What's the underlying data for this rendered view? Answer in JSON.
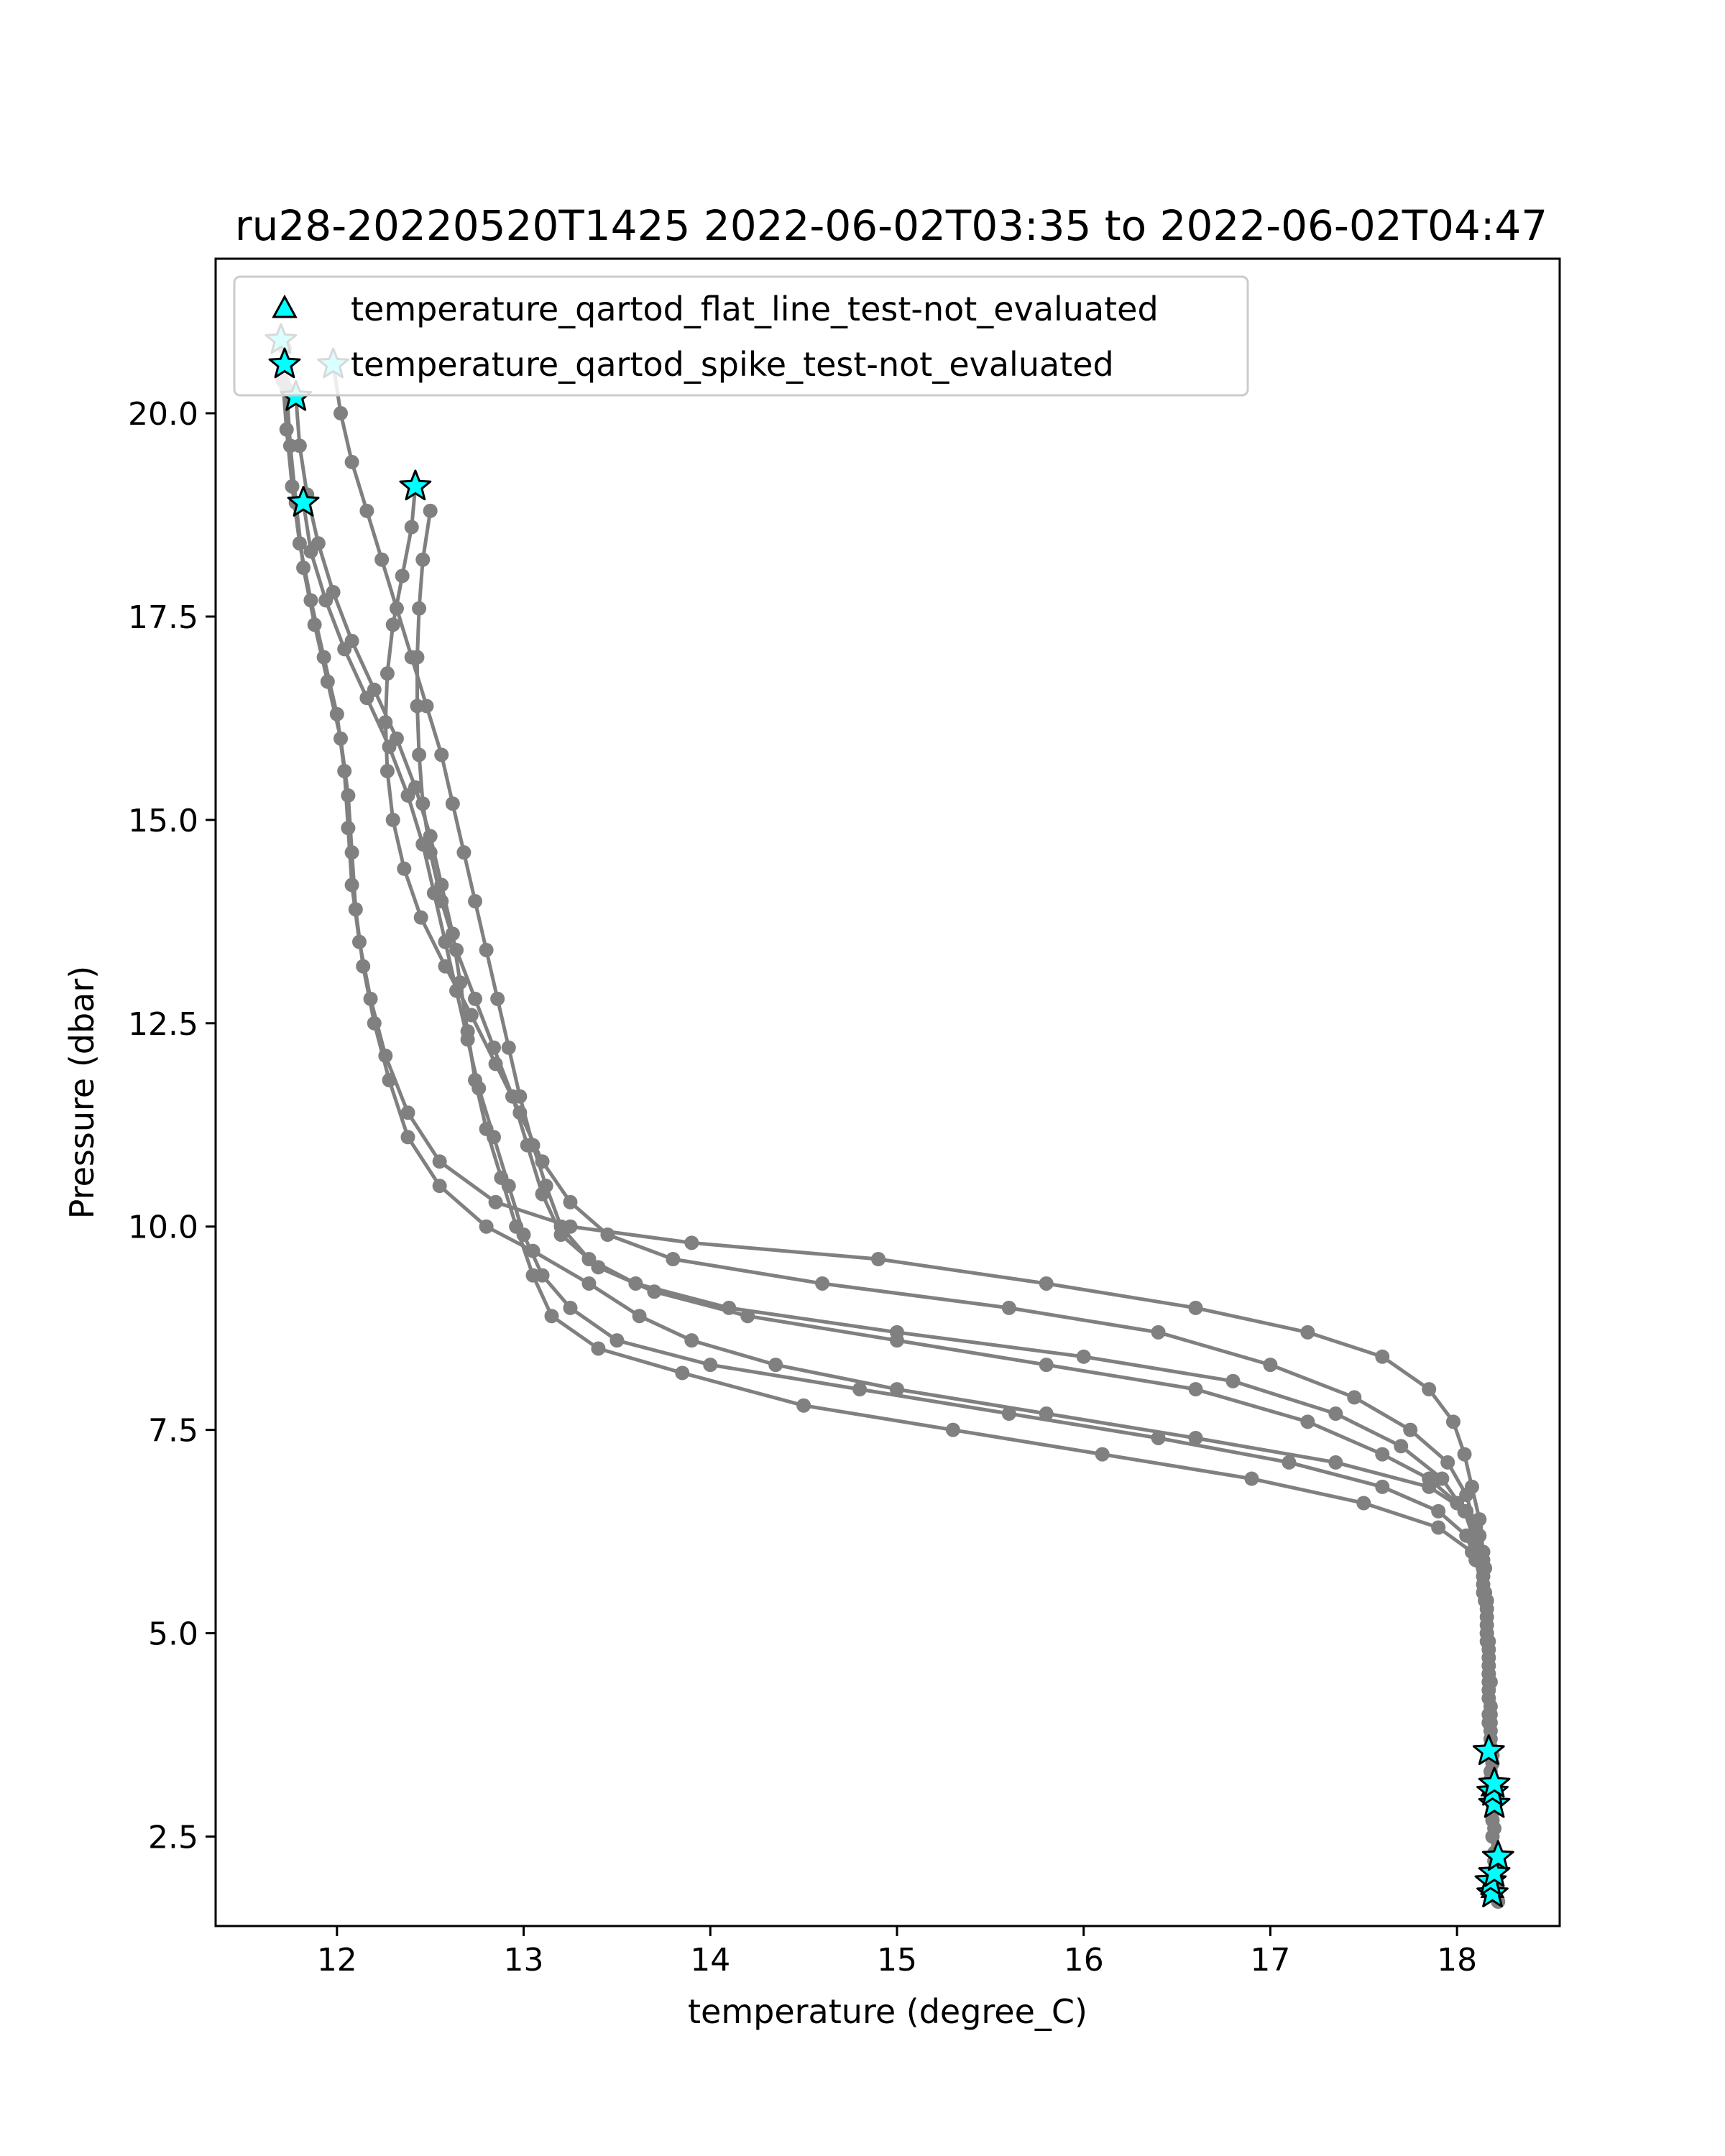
{
  "chart_data": {
    "type": "scatter",
    "title": "ru28-20220520T1425 2022-06-02T03:35 to 2022-06-02T04:47",
    "xlabel": "temperature (degree_C)",
    "ylabel": "Pressure (dbar)",
    "xlim": [
      11.35,
      18.55
    ],
    "ylim": [
      21.9,
      1.4
    ],
    "y_inverted": true,
    "x_ticks": [
      12,
      13,
      14,
      15,
      16,
      17,
      18
    ],
    "y_ticks": [
      2.5,
      5.0,
      7.5,
      10.0,
      12.5,
      15.0,
      17.5,
      20.0
    ],
    "x_tick_labels": [
      "12",
      "13",
      "14",
      "15",
      "16",
      "17",
      "18"
    ],
    "y_tick_labels": [
      "2.5",
      "5.0",
      "7.5",
      "10.0",
      "12.5",
      "15.0",
      "17.5",
      "20.0"
    ],
    "grid": false,
    "legend_position": "top-left",
    "legend": [
      {
        "label": "temperature_qartod_flat_line_test-not_evaluated",
        "marker": "triangle",
        "color": "#00ffff"
      },
      {
        "label": "temperature_qartod_spike_test-not_evaluated",
        "marker": "star",
        "color": "#00ffff"
      }
    ],
    "profile_color": "#808080",
    "series": [
      {
        "points": [
          [
            11.72,
            20.8
          ],
          [
            11.73,
            20.3
          ],
          [
            11.75,
            19.6
          ],
          [
            11.78,
            18.9
          ],
          [
            11.82,
            18.1
          ],
          [
            11.88,
            17.4
          ],
          [
            11.95,
            16.7
          ],
          [
            12.02,
            16.0
          ],
          [
            12.06,
            15.3
          ],
          [
            12.08,
            14.6
          ],
          [
            12.1,
            13.9
          ],
          [
            12.14,
            13.2
          ],
          [
            12.2,
            12.5
          ],
          [
            12.28,
            11.8
          ],
          [
            12.38,
            11.1
          ],
          [
            12.55,
            10.5
          ],
          [
            12.8,
            10.0
          ],
          [
            13.05,
            9.7
          ],
          [
            13.35,
            9.3
          ],
          [
            13.62,
            8.9
          ],
          [
            13.9,
            8.6
          ],
          [
            14.35,
            8.3
          ],
          [
            15.0,
            8.0
          ],
          [
            15.8,
            7.7
          ],
          [
            16.6,
            7.4
          ],
          [
            17.35,
            7.1
          ],
          [
            17.85,
            6.8
          ],
          [
            18.05,
            6.5
          ],
          [
            18.12,
            6.2
          ],
          [
            18.15,
            5.8
          ],
          [
            18.16,
            5.3
          ],
          [
            18.17,
            4.8
          ],
          [
            18.17,
            4.3
          ],
          [
            18.18,
            3.8
          ],
          [
            18.18,
            3.3
          ],
          [
            18.19,
            2.8
          ],
          [
            18.2,
            2.3
          ],
          [
            18.21,
            1.9
          ],
          [
            18.22,
            1.7
          ]
        ]
      },
      {
        "points": [
          [
            11.7,
            20.9
          ],
          [
            11.71,
            20.4
          ],
          [
            11.73,
            19.8
          ],
          [
            11.76,
            19.1
          ],
          [
            11.8,
            18.4
          ],
          [
            11.86,
            17.7
          ],
          [
            11.93,
            17.0
          ],
          [
            12.0,
            16.3
          ],
          [
            12.04,
            15.6
          ],
          [
            12.06,
            14.9
          ],
          [
            12.08,
            14.2
          ],
          [
            12.12,
            13.5
          ],
          [
            12.18,
            12.8
          ],
          [
            12.26,
            12.1
          ],
          [
            12.38,
            11.4
          ],
          [
            12.55,
            10.8
          ],
          [
            12.85,
            10.3
          ],
          [
            13.25,
            10.0
          ],
          [
            13.9,
            9.8
          ],
          [
            14.9,
            9.6
          ],
          [
            15.8,
            9.3
          ],
          [
            16.6,
            9.0
          ],
          [
            17.2,
            8.7
          ],
          [
            17.6,
            8.4
          ],
          [
            17.85,
            8.0
          ],
          [
            17.98,
            7.6
          ],
          [
            18.04,
            7.2
          ],
          [
            18.08,
            6.8
          ],
          [
            18.12,
            6.4
          ],
          [
            18.14,
            6.0
          ],
          [
            18.15,
            5.5
          ],
          [
            18.16,
            5.0
          ],
          [
            18.17,
            4.5
          ],
          [
            18.17,
            4.0
          ],
          [
            18.18,
            3.5
          ],
          [
            18.18,
            3.0
          ],
          [
            18.19,
            2.5
          ],
          [
            18.2,
            2.0
          ]
        ]
      },
      {
        "points": [
          [
            12.42,
            19.1
          ],
          [
            12.4,
            18.6
          ],
          [
            12.35,
            18.0
          ],
          [
            12.3,
            17.4
          ],
          [
            12.27,
            16.8
          ],
          [
            12.26,
            16.2
          ],
          [
            12.27,
            15.6
          ],
          [
            12.3,
            15.0
          ],
          [
            12.36,
            14.4
          ],
          [
            12.45,
            13.8
          ],
          [
            12.58,
            13.2
          ],
          [
            12.72,
            12.6
          ],
          [
            12.85,
            12.0
          ],
          [
            12.98,
            11.4
          ],
          [
            13.1,
            10.8
          ],
          [
            13.25,
            10.3
          ],
          [
            13.45,
            9.9
          ],
          [
            13.8,
            9.6
          ],
          [
            14.6,
            9.3
          ],
          [
            15.6,
            9.0
          ],
          [
            16.4,
            8.7
          ],
          [
            17.0,
            8.3
          ],
          [
            17.45,
            7.9
          ],
          [
            17.75,
            7.5
          ],
          [
            17.95,
            7.1
          ],
          [
            18.05,
            6.7
          ],
          [
            18.1,
            6.3
          ],
          [
            18.13,
            5.9
          ],
          [
            18.15,
            5.4
          ],
          [
            18.16,
            4.9
          ],
          [
            18.17,
            4.4
          ],
          [
            18.17,
            3.9
          ],
          [
            18.18,
            3.5
          ]
        ]
      },
      {
        "points": [
          [
            11.98,
            20.6
          ],
          [
            12.02,
            20.0
          ],
          [
            12.08,
            19.4
          ],
          [
            12.16,
            18.8
          ],
          [
            12.24,
            18.2
          ],
          [
            12.32,
            17.6
          ],
          [
            12.4,
            17.0
          ],
          [
            12.48,
            16.4
          ],
          [
            12.56,
            15.8
          ],
          [
            12.62,
            15.2
          ],
          [
            12.68,
            14.6
          ],
          [
            12.74,
            14.0
          ],
          [
            12.8,
            13.4
          ],
          [
            12.86,
            12.8
          ],
          [
            12.92,
            12.2
          ],
          [
            12.98,
            11.6
          ],
          [
            13.05,
            11.0
          ],
          [
            13.12,
            10.5
          ],
          [
            13.2,
            10.0
          ],
          [
            13.35,
            9.6
          ],
          [
            13.6,
            9.3
          ],
          [
            14.1,
            9.0
          ],
          [
            15.0,
            8.7
          ],
          [
            16.0,
            8.4
          ],
          [
            16.8,
            8.1
          ],
          [
            17.35,
            7.7
          ],
          [
            17.7,
            7.3
          ],
          [
            17.92,
            6.9
          ],
          [
            18.04,
            6.5
          ],
          [
            18.1,
            6.1
          ],
          [
            18.14,
            5.7
          ],
          [
            18.16,
            5.2
          ],
          [
            18.17,
            4.7
          ],
          [
            18.17,
            4.2
          ],
          [
            18.18,
            3.7
          ],
          [
            18.18,
            3.2
          ],
          [
            18.19,
            2.7
          ],
          [
            18.2,
            2.2
          ]
        ]
      },
      {
        "points": [
          [
            11.82,
            18.9
          ],
          [
            11.86,
            18.3
          ],
          [
            11.94,
            17.7
          ],
          [
            12.04,
            17.1
          ],
          [
            12.16,
            16.5
          ],
          [
            12.28,
            15.9
          ],
          [
            12.38,
            15.3
          ],
          [
            12.46,
            14.7
          ],
          [
            12.52,
            14.1
          ],
          [
            12.58,
            13.5
          ],
          [
            12.64,
            12.9
          ],
          [
            12.7,
            12.3
          ],
          [
            12.76,
            11.7
          ],
          [
            12.84,
            11.1
          ],
          [
            12.92,
            10.5
          ],
          [
            13.0,
            9.9
          ],
          [
            13.1,
            9.4
          ],
          [
            13.25,
            9.0
          ],
          [
            13.5,
            8.6
          ],
          [
            14.0,
            8.3
          ],
          [
            14.8,
            8.0
          ],
          [
            15.6,
            7.7
          ],
          [
            16.4,
            7.4
          ],
          [
            17.1,
            7.1
          ],
          [
            17.6,
            6.8
          ],
          [
            17.9,
            6.5
          ],
          [
            18.05,
            6.2
          ],
          [
            18.1,
            5.9
          ],
          [
            18.14,
            5.5
          ],
          [
            18.16,
            5.0
          ],
          [
            18.17,
            4.5
          ],
          [
            18.18,
            4.0
          ],
          [
            18.19,
            3.5
          ],
          [
            18.2,
            3.0
          ]
        ]
      },
      {
        "points": [
          [
            11.78,
            20.2
          ],
          [
            11.8,
            19.6
          ],
          [
            11.84,
            19.0
          ],
          [
            11.9,
            18.4
          ],
          [
            11.98,
            17.8
          ],
          [
            12.08,
            17.2
          ],
          [
            12.2,
            16.6
          ],
          [
            12.32,
            16.0
          ],
          [
            12.42,
            15.4
          ],
          [
            12.5,
            14.8
          ],
          [
            12.56,
            14.2
          ],
          [
            12.62,
            13.6
          ],
          [
            12.66,
            13.0
          ],
          [
            12.7,
            12.4
          ],
          [
            12.74,
            11.8
          ],
          [
            12.8,
            11.2
          ],
          [
            12.88,
            10.6
          ],
          [
            12.96,
            10.0
          ],
          [
            13.05,
            9.4
          ],
          [
            13.15,
            8.9
          ],
          [
            13.4,
            8.5
          ],
          [
            13.85,
            8.2
          ],
          [
            14.5,
            7.8
          ],
          [
            15.3,
            7.5
          ],
          [
            16.1,
            7.2
          ],
          [
            16.9,
            6.9
          ],
          [
            17.5,
            6.6
          ],
          [
            17.9,
            6.3
          ],
          [
            18.08,
            6.0
          ],
          [
            18.14,
            5.6
          ],
          [
            18.16,
            5.1
          ],
          [
            18.17,
            4.6
          ],
          [
            18.18,
            4.1
          ],
          [
            18.18,
            3.6
          ],
          [
            18.19,
            3.1
          ],
          [
            18.2,
            2.6
          ]
        ]
      },
      {
        "points": [
          [
            12.5,
            18.8
          ],
          [
            12.46,
            18.2
          ],
          [
            12.44,
            17.6
          ],
          [
            12.43,
            17.0
          ],
          [
            12.43,
            16.4
          ],
          [
            12.44,
            15.8
          ],
          [
            12.46,
            15.2
          ],
          [
            12.5,
            14.6
          ],
          [
            12.56,
            14.0
          ],
          [
            12.64,
            13.4
          ],
          [
            12.74,
            12.8
          ],
          [
            12.84,
            12.2
          ],
          [
            12.94,
            11.6
          ],
          [
            13.02,
            11.0
          ],
          [
            13.1,
            10.4
          ],
          [
            13.2,
            9.9
          ],
          [
            13.4,
            9.5
          ],
          [
            13.7,
            9.2
          ],
          [
            14.2,
            8.9
          ],
          [
            15.0,
            8.6
          ],
          [
            15.8,
            8.3
          ],
          [
            16.6,
            8.0
          ],
          [
            17.2,
            7.6
          ],
          [
            17.6,
            7.2
          ],
          [
            17.85,
            6.9
          ],
          [
            18.0,
            6.6
          ],
          [
            18.1,
            6.3
          ],
          [
            18.14,
            5.9
          ],
          [
            18.16,
            5.4
          ],
          [
            18.17,
            4.9
          ],
          [
            18.18,
            4.4
          ],
          [
            18.18,
            3.9
          ],
          [
            18.19,
            3.4
          ],
          [
            18.19,
            2.9
          ]
        ]
      }
    ],
    "spike_not_evaluated": [
      [
        18.19,
        1.8
      ],
      [
        18.18,
        1.95
      ],
      [
        18.2,
        2.05
      ],
      [
        18.22,
        2.25
      ],
      [
        18.2,
        2.9
      ],
      [
        18.19,
        3.05
      ],
      [
        18.2,
        3.15
      ],
      [
        18.17,
        3.55
      ],
      [
        11.82,
        18.9
      ],
      [
        12.42,
        19.1
      ],
      [
        11.78,
        20.2
      ],
      [
        11.98,
        20.6
      ],
      [
        11.7,
        20.9
      ]
    ],
    "flat_line_not_evaluated": [
      [
        18.19,
        1.85
      ],
      [
        18.19,
        3.1
      ]
    ]
  }
}
